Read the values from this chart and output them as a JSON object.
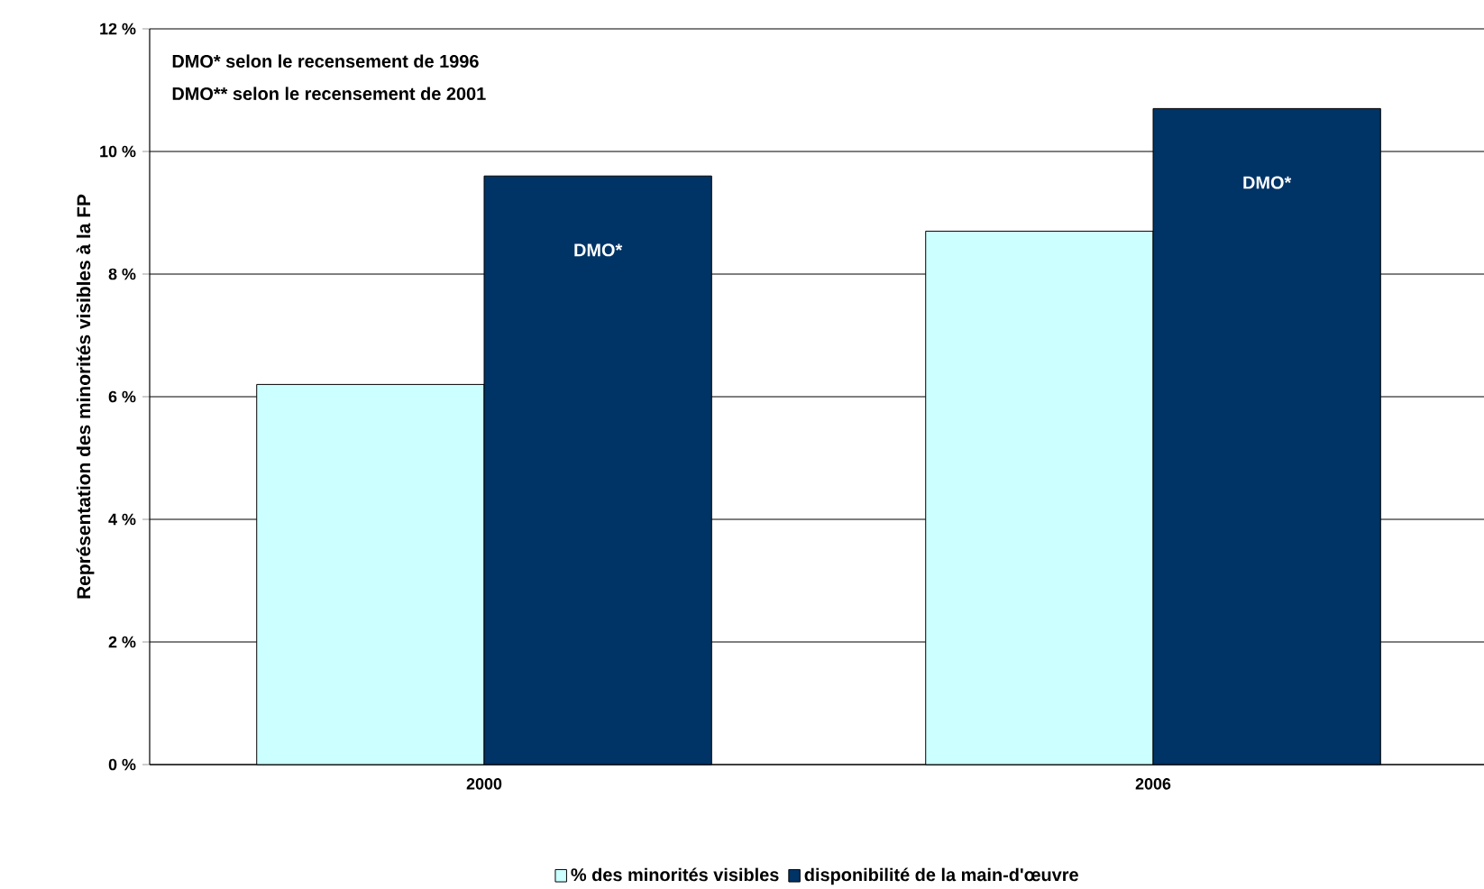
{
  "chart_data": {
    "type": "bar",
    "ylabel": "Représentation des minorités visibles à la FP",
    "categories": [
      "2000",
      "2006"
    ],
    "series": [
      {
        "name": "% des minorités visibles",
        "color": "#ccffff",
        "values": [
          6.2,
          8.7
        ]
      },
      {
        "name": "disponibilité de la main-d'œuvre",
        "color": "#003366",
        "values": [
          9.6,
          10.7
        ],
        "value_labels": [
          "DMO*",
          "DMO*"
        ]
      }
    ],
    "ylim": [
      0,
      12
    ],
    "yticks": [
      {
        "value": 0,
        "label": "0 %"
      },
      {
        "value": 2,
        "label": "2 %"
      },
      {
        "value": 4,
        "label": "4 %"
      },
      {
        "value": 6,
        "label": "6 %"
      },
      {
        "value": 8,
        "label": "8 %"
      },
      {
        "value": 10,
        "label": "10 %"
      },
      {
        "value": 12,
        "label": "12 %"
      }
    ],
    "grid": "y",
    "legend": "bottom",
    "annotations": [
      "DMO* selon le recensement de 1996",
      "DMO** selon le recensement de 2001"
    ]
  }
}
